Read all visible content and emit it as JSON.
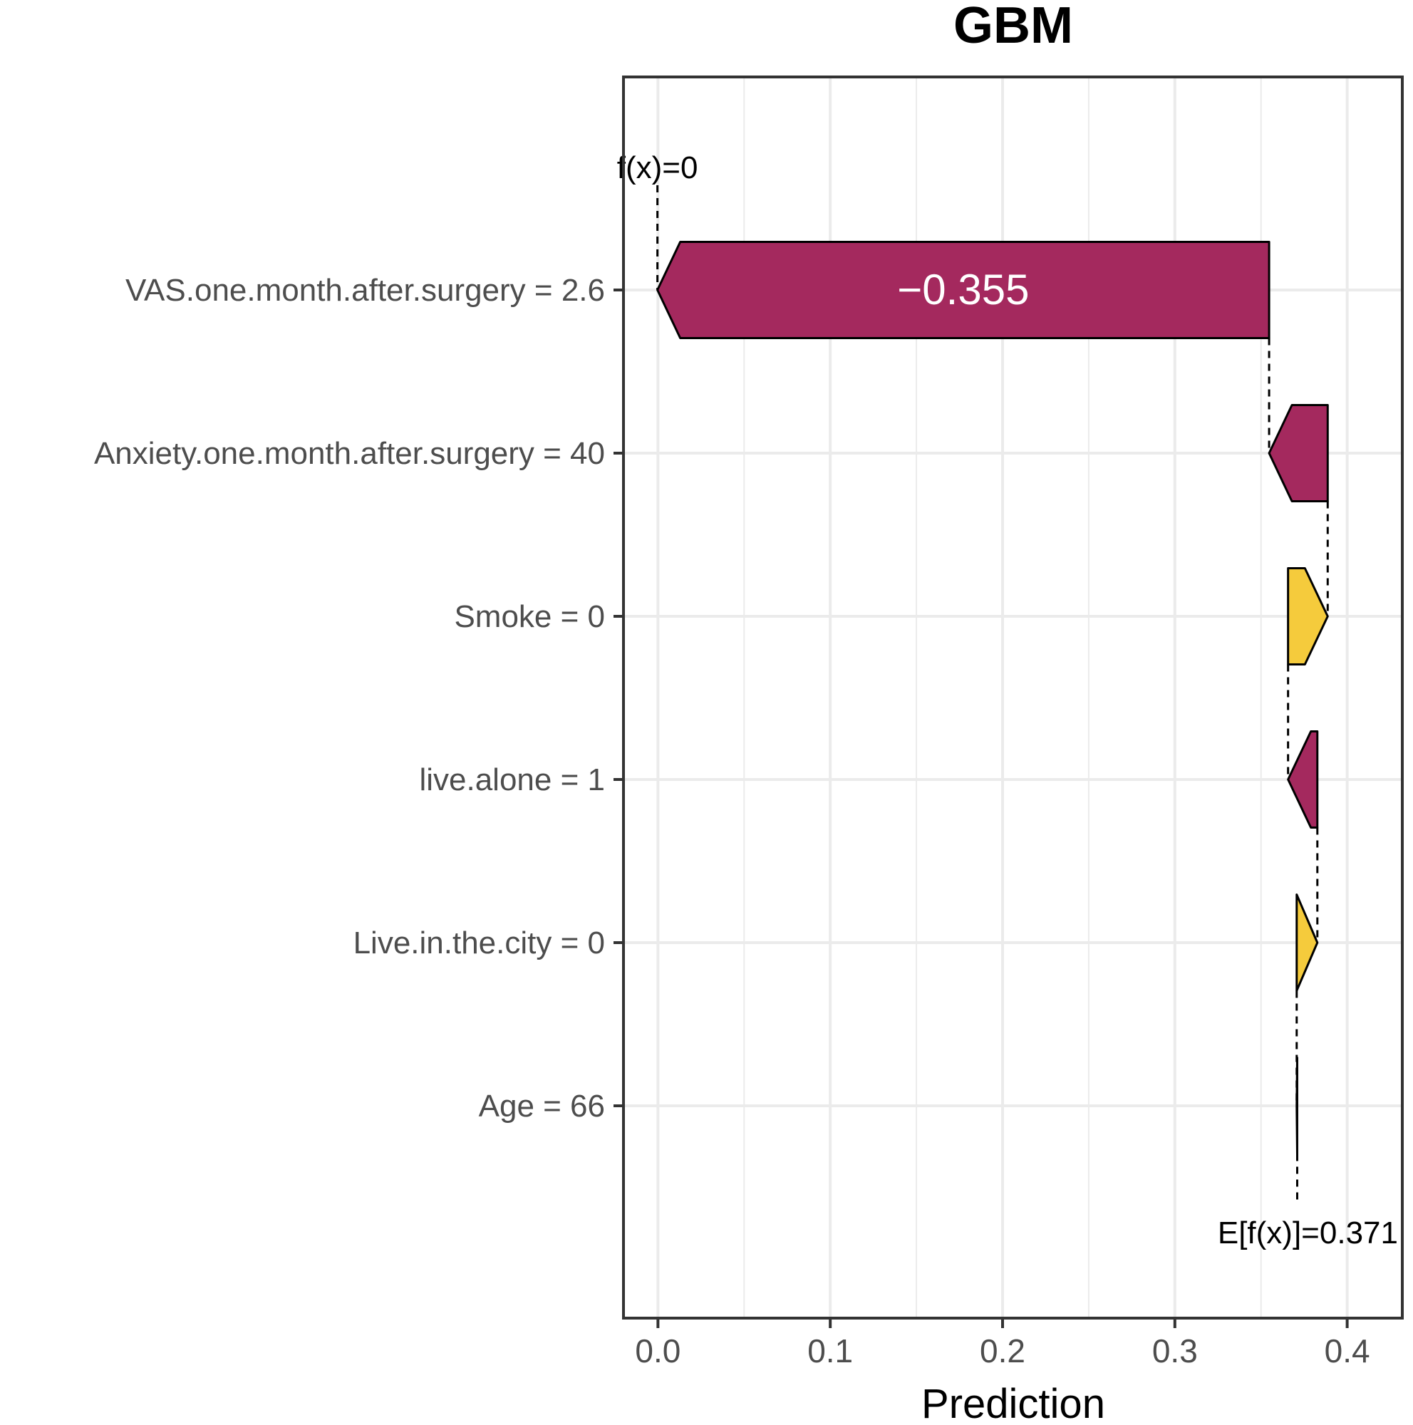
{
  "chart_data": {
    "type": "waterfall",
    "title": "GBM",
    "xlabel": "Prediction",
    "xlim": [
      -0.02,
      0.432
    ],
    "xticks": [
      0.0,
      0.1,
      0.2,
      0.3,
      0.4
    ],
    "xtick_labels": [
      "0.0",
      "0.1",
      "0.2",
      "0.3",
      "0.4"
    ],
    "grid": true,
    "baseline": 0.371,
    "baseline_label": "E[f(x)]=0.371",
    "prediction": 0,
    "prediction_label": "f(x)=0",
    "features": [
      {
        "label": "VAS.one.month.after.surgery = 2.6",
        "contribution": -0.355,
        "value_label": "−0.355"
      },
      {
        "label": "Anxiety.one.month.after.surgery = 40",
        "contribution": -0.034
      },
      {
        "label": "Smoke = 0",
        "contribution": 0.023
      },
      {
        "label": "live.alone = 1",
        "contribution": -0.017
      },
      {
        "label": "Live.in.the.city = 0",
        "contribution": 0.012
      },
      {
        "label": "Age = 66",
        "contribution": -0.0003
      }
    ],
    "colors": {
      "negative": "#A4295E",
      "positive": "#F5CB3C"
    }
  }
}
